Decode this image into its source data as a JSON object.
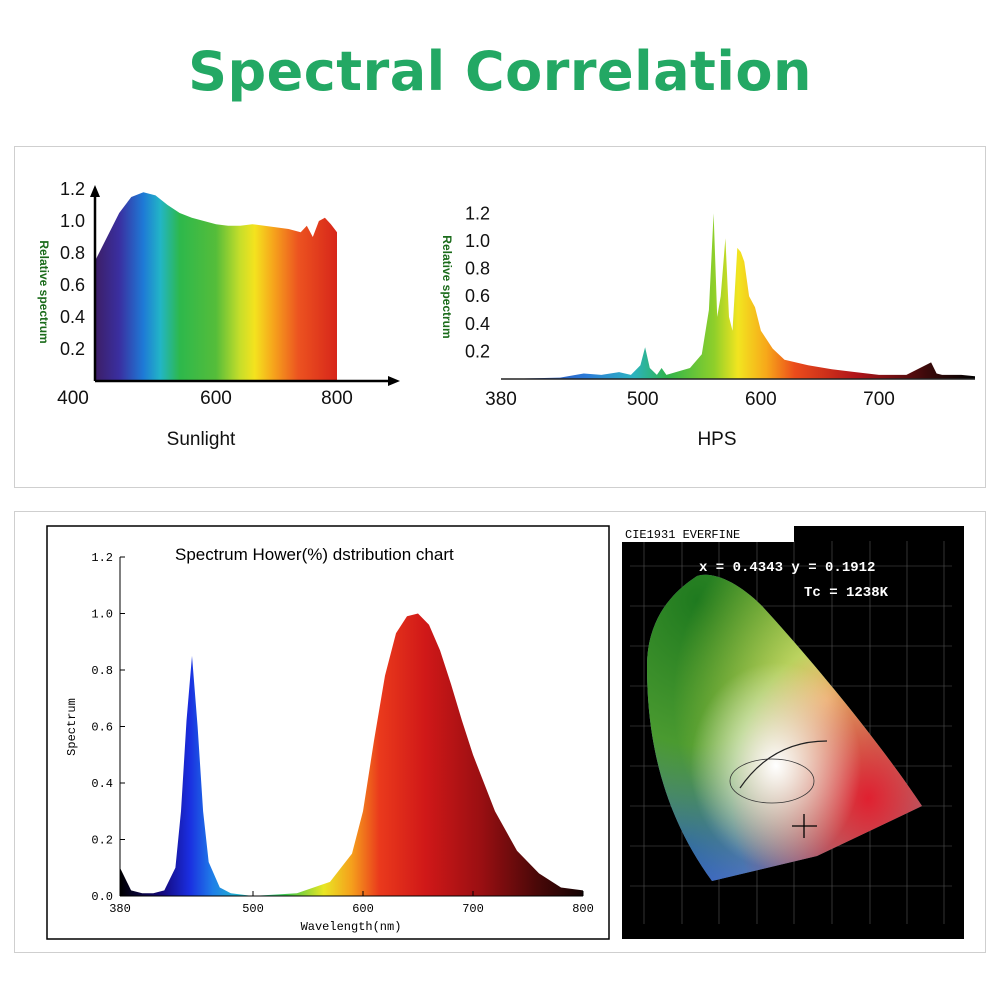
{
  "page": {
    "title": "Spectral Correlation"
  },
  "charts": {
    "sunlight": {
      "name": "Sunlight",
      "ylabel": "Relative spectrum"
    },
    "hps": {
      "name": "HPS",
      "ylabel": "Relative spectrum"
    },
    "led": {
      "title": "Spectrum Hower(%) dstribution chart",
      "xlabel": "Wavelength(nm)",
      "ylabel": "Spectrum"
    },
    "cie": {
      "header": "CIE1931 EVERFINE",
      "coords": "x = 0.4343 y = 0.1912",
      "tc": "Tc = 1238K"
    }
  },
  "chart_data": [
    {
      "type": "area",
      "name": "Sunlight",
      "ylabel": "Relative spectrum",
      "xticks": [
        400,
        600,
        800
      ],
      "yticks": [
        0.2,
        0.4,
        0.6,
        0.8,
        1.0,
        1.2
      ],
      "xlim": [
        400,
        900
      ],
      "ylim": [
        0,
        1.3
      ],
      "x": [
        400,
        420,
        440,
        460,
        480,
        500,
        520,
        540,
        560,
        580,
        600,
        620,
        640,
        660,
        680,
        700,
        720,
        740,
        750,
        760,
        770,
        780,
        790,
        800
      ],
      "y": [
        0.75,
        0.9,
        1.05,
        1.15,
        1.18,
        1.16,
        1.1,
        1.05,
        1.02,
        1.0,
        0.98,
        0.97,
        0.97,
        0.98,
        0.97,
        0.96,
        0.95,
        0.93,
        0.97,
        0.9,
        1.0,
        1.02,
        0.98,
        0.93
      ]
    },
    {
      "type": "area",
      "name": "HPS",
      "ylabel": "Relative spectrum",
      "xticks": [
        380,
        500,
        600,
        700
      ],
      "yticks": [
        0.2,
        0.4,
        0.6,
        0.8,
        1.0,
        1.2
      ],
      "xlim": [
        380,
        770
      ],
      "ylim": [
        0,
        1.3
      ],
      "x": [
        380,
        430,
        450,
        465,
        480,
        490,
        498,
        502,
        506,
        512,
        516,
        520,
        540,
        550,
        556,
        560,
        563,
        566,
        570,
        573,
        576,
        580,
        583,
        586,
        590,
        595,
        600,
        610,
        620,
        640,
        660,
        680,
        700,
        720,
        738,
        742,
        746,
        760,
        770
      ],
      "y": [
        0,
        0.01,
        0.04,
        0.03,
        0.05,
        0.03,
        0.1,
        0.23,
        0.08,
        0.03,
        0.08,
        0.03,
        0.08,
        0.18,
        0.5,
        1.2,
        0.45,
        0.6,
        1.02,
        0.45,
        0.35,
        0.95,
        0.92,
        0.85,
        0.6,
        0.52,
        0.35,
        0.22,
        0.14,
        0.1,
        0.07,
        0.05,
        0.03,
        0.03,
        0.12,
        0.04,
        0.03,
        0.03,
        0.02
      ]
    },
    {
      "type": "area",
      "title": "Spectrum Hower(%) dstribution chart",
      "xlabel": "Wavelength(nm)",
      "ylabel": "Spectrum",
      "xticks": [
        380,
        500,
        600,
        700,
        800
      ],
      "yticks": [
        0.0,
        0.2,
        0.4,
        0.6,
        0.8,
        1.0,
        1.2
      ],
      "xlim": [
        380,
        800
      ],
      "ylim": [
        0,
        1.2
      ],
      "x": [
        380,
        390,
        400,
        410,
        420,
        430,
        435,
        440,
        445,
        450,
        455,
        460,
        470,
        480,
        500,
        540,
        570,
        590,
        600,
        610,
        620,
        630,
        640,
        650,
        660,
        670,
        680,
        690,
        700,
        720,
        740,
        760,
        780,
        800
      ],
      "y": [
        0.1,
        0.02,
        0.01,
        0.01,
        0.02,
        0.1,
        0.3,
        0.62,
        0.85,
        0.6,
        0.3,
        0.12,
        0.03,
        0.01,
        0.0,
        0.01,
        0.05,
        0.15,
        0.3,
        0.55,
        0.78,
        0.93,
        0.99,
        1.0,
        0.96,
        0.87,
        0.75,
        0.62,
        0.5,
        0.3,
        0.16,
        0.08,
        0.03,
        0.02
      ]
    }
  ]
}
